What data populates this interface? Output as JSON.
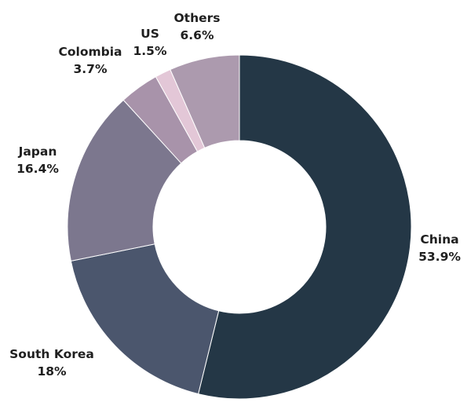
{
  "chart_data": {
    "type": "pie",
    "donut": true,
    "categories": [
      "China",
      "South Korea",
      "Japan",
      "Colombia",
      "US",
      "Others"
    ],
    "values": [
      53.9,
      18,
      16.4,
      3.7,
      1.5,
      6.6
    ],
    "value_labels": [
      "53.9%",
      "18%",
      "16.4%",
      "3.7%",
      "1.5%",
      "6.6%"
    ],
    "colors": [
      "#243746",
      "#4b566d",
      "#7c778e",
      "#a893aa",
      "#e3c7d7",
      "#ac9aae"
    ],
    "start": "top",
    "direction": "clockwise",
    "legend": "none",
    "title": ""
  }
}
